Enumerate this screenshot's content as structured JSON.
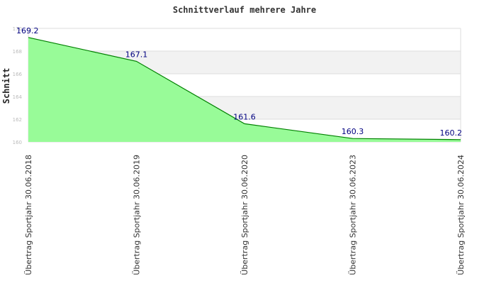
{
  "chart_data": {
    "type": "area",
    "title": "Schnittverlauf mehrere Jahre",
    "xlabel": "",
    "ylabel": "Schnitt",
    "categories": [
      "Übertrag Sportjahr 30.06.2018",
      "Übertrag Sportjahr 30.06.2019",
      "Übertrag Sportjahr 30.06.2020",
      "Übertrag Sportjahr 30.06.2023",
      "Übertrag Sportjahr 30.06.2024"
    ],
    "series": [
      {
        "values": [
          169.2,
          167.1,
          161.6,
          160.3,
          160.2
        ]
      }
    ],
    "data_labels": [
      "169.2",
      "167.1",
      "161.6",
      "160.3",
      "160.2"
    ],
    "ylim": [
      160,
      170
    ],
    "yticks": [
      160,
      162,
      164,
      166,
      168,
      170
    ],
    "ytick_labels": [
      "160",
      "162",
      "164",
      "166",
      "168",
      "170"
    ],
    "grid": true,
    "legend": "none",
    "colors": {
      "fill": "#98fb98",
      "line": "#008000",
      "label": "#000080",
      "band": "#f2f2f2",
      "grid": "#dddddd"
    }
  }
}
